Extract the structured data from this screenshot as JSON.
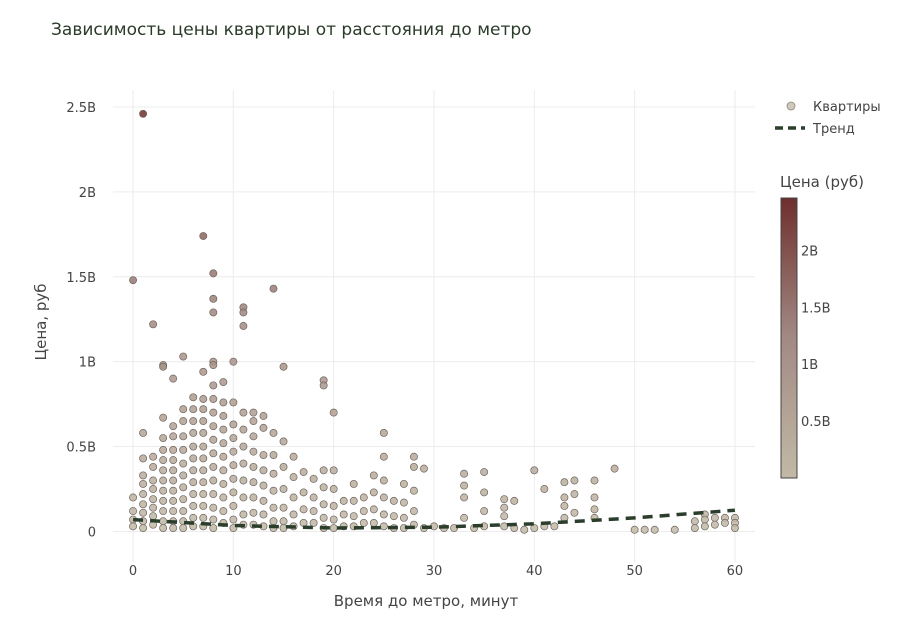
{
  "chart_data": {
    "type": "scatter",
    "title": "Зависимость цены квартиры от расстояния до метро",
    "xlabel": "Время до метро, минут",
    "ylabel": "Цена, руб",
    "xlim": [
      -2,
      62
    ],
    "ylim": [
      -180000000,
      2600000000
    ],
    "x_ticks": [
      0,
      10,
      20,
      30,
      40,
      50,
      60
    ],
    "x_tick_labels": [
      "0",
      "10",
      "20",
      "30",
      "40",
      "50",
      "60"
    ],
    "y_ticks": [
      0,
      500000000,
      1000000000,
      1500000000,
      2000000000,
      2500000000
    ],
    "y_tick_labels": [
      "0",
      "0.5B",
      "1B",
      "1.5B",
      "2B",
      "2.5B"
    ],
    "grid": true,
    "legend_position": "top-right",
    "series": [
      {
        "name": "Квартиры",
        "kind": "markers",
        "points": [
          [
            0,
            1480000000
          ],
          [
            0,
            200000000
          ],
          [
            0,
            120000000
          ],
          [
            0,
            70000000
          ],
          [
            0,
            30000000
          ],
          [
            1,
            2460000000
          ],
          [
            1,
            580000000
          ],
          [
            1,
            430000000
          ],
          [
            1,
            330000000
          ],
          [
            1,
            280000000
          ],
          [
            1,
            220000000
          ],
          [
            1,
            160000000
          ],
          [
            1,
            110000000
          ],
          [
            1,
            60000000
          ],
          [
            1,
            20000000
          ],
          [
            2,
            1220000000
          ],
          [
            2,
            440000000
          ],
          [
            2,
            380000000
          ],
          [
            2,
            300000000
          ],
          [
            2,
            250000000
          ],
          [
            2,
            190000000
          ],
          [
            2,
            140000000
          ],
          [
            2,
            90000000
          ],
          [
            2,
            40000000
          ],
          [
            3,
            980000000
          ],
          [
            3,
            970000000
          ],
          [
            3,
            670000000
          ],
          [
            3,
            550000000
          ],
          [
            3,
            480000000
          ],
          [
            3,
            420000000
          ],
          [
            3,
            360000000
          ],
          [
            3,
            300000000
          ],
          [
            3,
            240000000
          ],
          [
            3,
            180000000
          ],
          [
            3,
            120000000
          ],
          [
            3,
            60000000
          ],
          [
            3,
            20000000
          ],
          [
            4,
            900000000
          ],
          [
            4,
            620000000
          ],
          [
            4,
            560000000
          ],
          [
            4,
            480000000
          ],
          [
            4,
            420000000
          ],
          [
            4,
            360000000
          ],
          [
            4,
            300000000
          ],
          [
            4,
            240000000
          ],
          [
            4,
            180000000
          ],
          [
            4,
            120000000
          ],
          [
            4,
            60000000
          ],
          [
            4,
            20000000
          ],
          [
            5,
            1030000000
          ],
          [
            5,
            720000000
          ],
          [
            5,
            650000000
          ],
          [
            5,
            560000000
          ],
          [
            5,
            480000000
          ],
          [
            5,
            400000000
          ],
          [
            5,
            330000000
          ],
          [
            5,
            260000000
          ],
          [
            5,
            190000000
          ],
          [
            5,
            120000000
          ],
          [
            5,
            60000000
          ],
          [
            5,
            20000000
          ],
          [
            6,
            790000000
          ],
          [
            6,
            720000000
          ],
          [
            6,
            650000000
          ],
          [
            6,
            580000000
          ],
          [
            6,
            500000000
          ],
          [
            6,
            430000000
          ],
          [
            6,
            360000000
          ],
          [
            6,
            290000000
          ],
          [
            6,
            220000000
          ],
          [
            6,
            150000000
          ],
          [
            6,
            80000000
          ],
          [
            6,
            30000000
          ],
          [
            7,
            1740000000
          ],
          [
            7,
            940000000
          ],
          [
            7,
            780000000
          ],
          [
            7,
            720000000
          ],
          [
            7,
            650000000
          ],
          [
            7,
            580000000
          ],
          [
            7,
            500000000
          ],
          [
            7,
            430000000
          ],
          [
            7,
            360000000
          ],
          [
            7,
            290000000
          ],
          [
            7,
            220000000
          ],
          [
            7,
            150000000
          ],
          [
            7,
            80000000
          ],
          [
            7,
            30000000
          ],
          [
            8,
            1520000000
          ],
          [
            8,
            1370000000
          ],
          [
            8,
            1290000000
          ],
          [
            8,
            1000000000
          ],
          [
            8,
            980000000
          ],
          [
            8,
            860000000
          ],
          [
            8,
            780000000
          ],
          [
            8,
            700000000
          ],
          [
            8,
            620000000
          ],
          [
            8,
            540000000
          ],
          [
            8,
            460000000
          ],
          [
            8,
            380000000
          ],
          [
            8,
            300000000
          ],
          [
            8,
            220000000
          ],
          [
            8,
            140000000
          ],
          [
            8,
            70000000
          ],
          [
            8,
            20000000
          ],
          [
            9,
            880000000
          ],
          [
            9,
            760000000
          ],
          [
            9,
            680000000
          ],
          [
            9,
            600000000
          ],
          [
            9,
            520000000
          ],
          [
            9,
            440000000
          ],
          [
            9,
            360000000
          ],
          [
            9,
            280000000
          ],
          [
            9,
            200000000
          ],
          [
            9,
            120000000
          ],
          [
            9,
            50000000
          ],
          [
            10,
            1000000000
          ],
          [
            10,
            760000000
          ],
          [
            10,
            630000000
          ],
          [
            10,
            550000000
          ],
          [
            10,
            470000000
          ],
          [
            10,
            390000000
          ],
          [
            10,
            310000000
          ],
          [
            10,
            230000000
          ],
          [
            10,
            150000000
          ],
          [
            10,
            70000000
          ],
          [
            10,
            20000000
          ],
          [
            11,
            1320000000
          ],
          [
            11,
            1290000000
          ],
          [
            11,
            1210000000
          ],
          [
            11,
            700000000
          ],
          [
            11,
            600000000
          ],
          [
            11,
            500000000
          ],
          [
            11,
            400000000
          ],
          [
            11,
            300000000
          ],
          [
            11,
            200000000
          ],
          [
            11,
            100000000
          ],
          [
            11,
            40000000
          ],
          [
            12,
            700000000
          ],
          [
            12,
            650000000
          ],
          [
            12,
            560000000
          ],
          [
            12,
            470000000
          ],
          [
            12,
            380000000
          ],
          [
            12,
            290000000
          ],
          [
            12,
            200000000
          ],
          [
            12,
            110000000
          ],
          [
            12,
            40000000
          ],
          [
            13,
            680000000
          ],
          [
            13,
            610000000
          ],
          [
            13,
            450000000
          ],
          [
            13,
            360000000
          ],
          [
            13,
            270000000
          ],
          [
            13,
            180000000
          ],
          [
            13,
            100000000
          ],
          [
            13,
            30000000
          ],
          [
            14,
            1430000000
          ],
          [
            14,
            580000000
          ],
          [
            14,
            450000000
          ],
          [
            14,
            340000000
          ],
          [
            14,
            240000000
          ],
          [
            14,
            140000000
          ],
          [
            14,
            60000000
          ],
          [
            14,
            20000000
          ],
          [
            15,
            970000000
          ],
          [
            15,
            530000000
          ],
          [
            15,
            380000000
          ],
          [
            15,
            250000000
          ],
          [
            15,
            140000000
          ],
          [
            15,
            60000000
          ],
          [
            15,
            20000000
          ],
          [
            16,
            440000000
          ],
          [
            16,
            320000000
          ],
          [
            16,
            200000000
          ],
          [
            16,
            100000000
          ],
          [
            16,
            30000000
          ],
          [
            17,
            350000000
          ],
          [
            17,
            230000000
          ],
          [
            17,
            130000000
          ],
          [
            17,
            50000000
          ],
          [
            18,
            310000000
          ],
          [
            18,
            200000000
          ],
          [
            18,
            120000000
          ],
          [
            18,
            50000000
          ],
          [
            19,
            890000000
          ],
          [
            19,
            860000000
          ],
          [
            19,
            360000000
          ],
          [
            19,
            260000000
          ],
          [
            19,
            160000000
          ],
          [
            19,
            80000000
          ],
          [
            19,
            20000000
          ],
          [
            20,
            700000000
          ],
          [
            20,
            360000000
          ],
          [
            20,
            250000000
          ],
          [
            20,
            150000000
          ],
          [
            20,
            70000000
          ],
          [
            20,
            20000000
          ],
          [
            21,
            180000000
          ],
          [
            21,
            100000000
          ],
          [
            21,
            30000000
          ],
          [
            22,
            280000000
          ],
          [
            22,
            180000000
          ],
          [
            22,
            90000000
          ],
          [
            22,
            30000000
          ],
          [
            23,
            200000000
          ],
          [
            23,
            120000000
          ],
          [
            23,
            50000000
          ],
          [
            24,
            330000000
          ],
          [
            24,
            230000000
          ],
          [
            24,
            130000000
          ],
          [
            24,
            50000000
          ],
          [
            25,
            580000000
          ],
          [
            25,
            440000000
          ],
          [
            25,
            300000000
          ],
          [
            25,
            200000000
          ],
          [
            25,
            100000000
          ],
          [
            25,
            30000000
          ],
          [
            26,
            180000000
          ],
          [
            26,
            90000000
          ],
          [
            26,
            20000000
          ],
          [
            27,
            280000000
          ],
          [
            27,
            170000000
          ],
          [
            27,
            80000000
          ],
          [
            27,
            20000000
          ],
          [
            28,
            440000000
          ],
          [
            28,
            380000000
          ],
          [
            28,
            240000000
          ],
          [
            28,
            120000000
          ],
          [
            28,
            40000000
          ],
          [
            29,
            370000000
          ],
          [
            29,
            20000000
          ],
          [
            30,
            30000000
          ],
          [
            31,
            20000000
          ],
          [
            32,
            20000000
          ],
          [
            33,
            340000000
          ],
          [
            33,
            270000000
          ],
          [
            33,
            200000000
          ],
          [
            33,
            80000000
          ],
          [
            34,
            20000000
          ],
          [
            35,
            350000000
          ],
          [
            35,
            230000000
          ],
          [
            35,
            120000000
          ],
          [
            35,
            30000000
          ],
          [
            37,
            190000000
          ],
          [
            37,
            140000000
          ],
          [
            37,
            90000000
          ],
          [
            37,
            30000000
          ],
          [
            38,
            180000000
          ],
          [
            38,
            20000000
          ],
          [
            39,
            10000000
          ],
          [
            40,
            360000000
          ],
          [
            40,
            20000000
          ],
          [
            41,
            250000000
          ],
          [
            41,
            30000000
          ],
          [
            42,
            30000000
          ],
          [
            43,
            290000000
          ],
          [
            43,
            200000000
          ],
          [
            43,
            150000000
          ],
          [
            43,
            80000000
          ],
          [
            44,
            300000000
          ],
          [
            44,
            220000000
          ],
          [
            44,
            110000000
          ],
          [
            46,
            300000000
          ],
          [
            46,
            200000000
          ],
          [
            46,
            130000000
          ],
          [
            46,
            80000000
          ],
          [
            48,
            370000000
          ],
          [
            50,
            10000000
          ],
          [
            51,
            10000000
          ],
          [
            52,
            10000000
          ],
          [
            54,
            10000000
          ],
          [
            56,
            60000000
          ],
          [
            56,
            20000000
          ],
          [
            57,
            100000000
          ],
          [
            57,
            70000000
          ],
          [
            57,
            30000000
          ],
          [
            58,
            80000000
          ],
          [
            58,
            40000000
          ],
          [
            59,
            80000000
          ],
          [
            59,
            50000000
          ],
          [
            60,
            80000000
          ],
          [
            60,
            50000000
          ],
          [
            60,
            20000000
          ]
        ]
      },
      {
        "name": "Тренд",
        "kind": "line",
        "color": "#2b3d2b",
        "points": [
          [
            0,
            70000000
          ],
          [
            10,
            35000000
          ],
          [
            20,
            20000000
          ],
          [
            30,
            25000000
          ],
          [
            40,
            45000000
          ],
          [
            50,
            80000000
          ],
          [
            60,
            125000000
          ]
        ]
      }
    ],
    "colorbar": {
      "title": "Цена (руб)",
      "range": [
        0,
        2460000000
      ],
      "ticks": [
        500000000,
        1000000000,
        1500000000,
        2000000000
      ],
      "tick_labels": [
        "0.5B",
        "1B",
        "1.5B",
        "2B"
      ],
      "color_low": "#c2b9a6",
      "color_mid": "#a28a83",
      "color_high": "#6e2f2d"
    }
  }
}
